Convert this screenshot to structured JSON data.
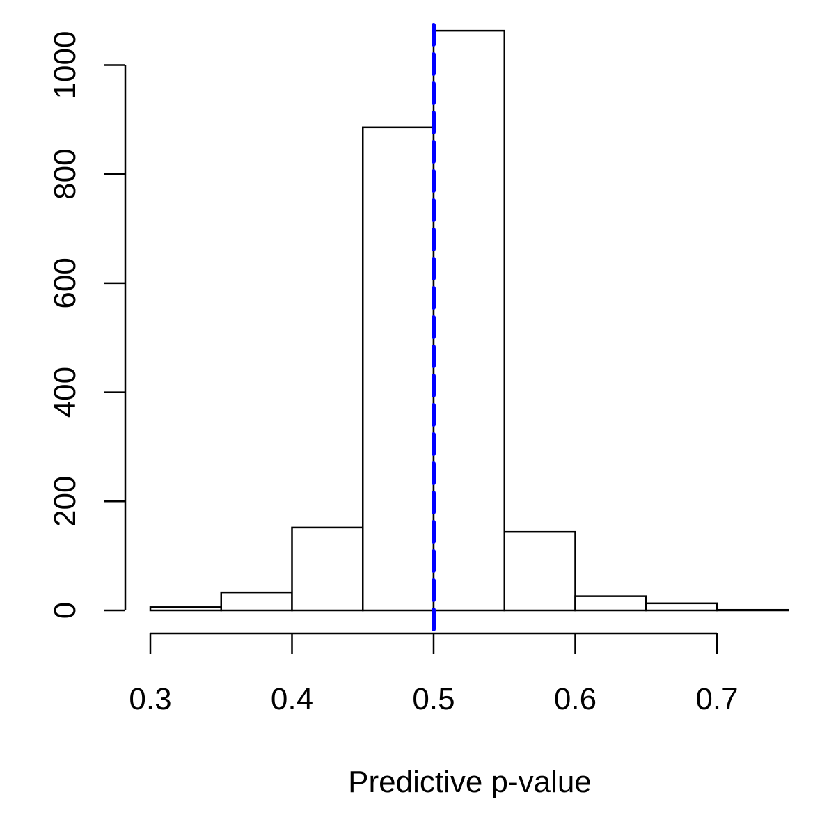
{
  "chart_data": {
    "type": "bar",
    "subtype": "histogram",
    "title": "",
    "xlabel": "Predictive p-value",
    "ylabel": "",
    "bins": [
      {
        "start": 0.3,
        "end": 0.35,
        "count": 6
      },
      {
        "start": 0.35,
        "end": 0.4,
        "count": 33
      },
      {
        "start": 0.4,
        "end": 0.45,
        "count": 152
      },
      {
        "start": 0.45,
        "end": 0.5,
        "count": 886
      },
      {
        "start": 0.5,
        "end": 0.55,
        "count": 1063
      },
      {
        "start": 0.55,
        "end": 0.6,
        "count": 144
      },
      {
        "start": 0.6,
        "end": 0.65,
        "count": 26
      },
      {
        "start": 0.65,
        "end": 0.7,
        "count": 13
      },
      {
        "start": 0.7,
        "end": 0.75,
        "count": 1
      }
    ],
    "xlim": [
      0.3,
      0.75
    ],
    "ylim": [
      0,
      1060
    ],
    "x_ticks": [
      0.3,
      0.4,
      0.5,
      0.6,
      0.7
    ],
    "x_tick_labels": [
      "0.3",
      "0.4",
      "0.5",
      "0.6",
      "0.7"
    ],
    "y_ticks": [
      0,
      200,
      400,
      600,
      800,
      1000
    ],
    "y_tick_labels": [
      "0",
      "200",
      "400",
      "600",
      "800",
      "1000"
    ],
    "reference_line": {
      "x": 0.5,
      "color": "#0000ff",
      "style": "dashed"
    },
    "grid": false,
    "legend": "none",
    "bar_fill": "#ffffff",
    "bar_stroke": "#000000"
  }
}
